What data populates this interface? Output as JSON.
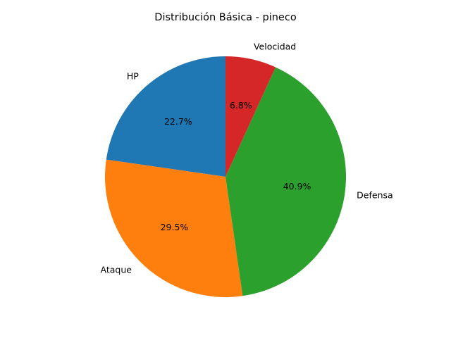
{
  "chart_data": {
    "type": "pie",
    "title": "Distribución Básica - pineco",
    "labels": [
      "HP",
      "Ataque",
      "Defensa",
      "Velocidad"
    ],
    "values": [
      50,
      65,
      90,
      15
    ],
    "percent_labels": [
      "22.7%",
      "29.5%",
      "40.9%",
      "6.8%"
    ],
    "colors": [
      "#1f77b4",
      "#ff7f0e",
      "#2ca02c",
      "#d62728"
    ],
    "start_angle_deg": 90,
    "direction": "counterclockwise",
    "legend": "none"
  }
}
